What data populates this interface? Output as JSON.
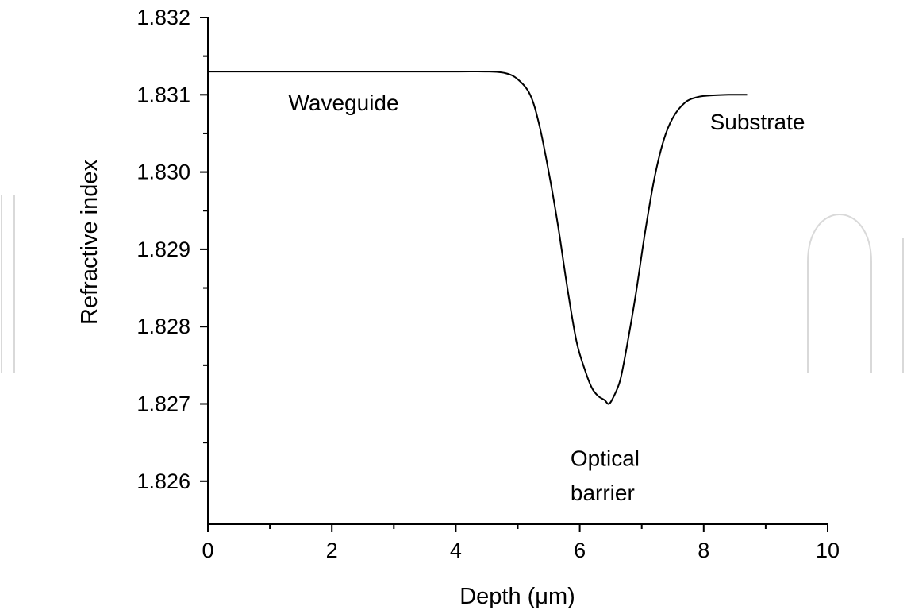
{
  "chart_data": {
    "type": "line",
    "title": "",
    "xlabel": "Depth (μm)",
    "ylabel": "Refractive index",
    "xlim": [
      0,
      10
    ],
    "ylim": [
      1.8255,
      1.832
    ],
    "x_ticks": [
      0,
      2,
      4,
      6,
      8,
      10
    ],
    "x_tick_labels": [
      "0",
      "2",
      "4",
      "6",
      "8",
      "10"
    ],
    "x_minor_ticks": [
      1,
      3,
      5,
      7,
      9
    ],
    "y_ticks": [
      1.826,
      1.827,
      1.828,
      1.829,
      1.83,
      1.831,
      1.832
    ],
    "y_tick_labels": [
      "1.826",
      "1.827",
      "1.828",
      "1.829",
      "1.830",
      "1.831",
      "1.832"
    ],
    "y_minor_ticks": [
      1.8265,
      1.8275,
      1.8285,
      1.8295,
      1.8305,
      1.8315
    ],
    "grid": false,
    "legend": "none",
    "series": [
      {
        "x": [
          0,
          1,
          2,
          3,
          4,
          4.5,
          4.8,
          5.0,
          5.2,
          5.35,
          5.5,
          5.65,
          5.8,
          5.95,
          6.1,
          6.2,
          6.3,
          6.4,
          6.47,
          6.55,
          6.65,
          6.75,
          6.9,
          7.05,
          7.2,
          7.35,
          7.5,
          7.7,
          7.9,
          8.1,
          8.4,
          8.7
        ],
        "y": [
          1.8313,
          1.8313,
          1.8313,
          1.8313,
          1.8313,
          1.8313,
          1.83128,
          1.8312,
          1.831,
          1.8306,
          1.83,
          1.8293,
          1.8285,
          1.8278,
          1.8274,
          1.8272,
          1.8271,
          1.82705,
          1.827,
          1.8271,
          1.8273,
          1.8277,
          1.8284,
          1.8292,
          1.8299,
          1.8304,
          1.8307,
          1.8309,
          1.83097,
          1.83099,
          1.831,
          1.831
        ]
      }
    ],
    "annotations": [
      {
        "text": "Waveguide",
        "x": 1.3,
        "y": 1.8308
      },
      {
        "text": "Substrate",
        "x": 8.1,
        "y": 1.83055
      },
      {
        "text": "Optical",
        "x": 5.85,
        "y": 1.8262
      },
      {
        "text": "barrier",
        "x": 5.85,
        "y": 1.82575
      }
    ]
  },
  "colors": {
    "curve": "#000000",
    "axis": "#000000",
    "watermark": "#d9d9d9"
  }
}
